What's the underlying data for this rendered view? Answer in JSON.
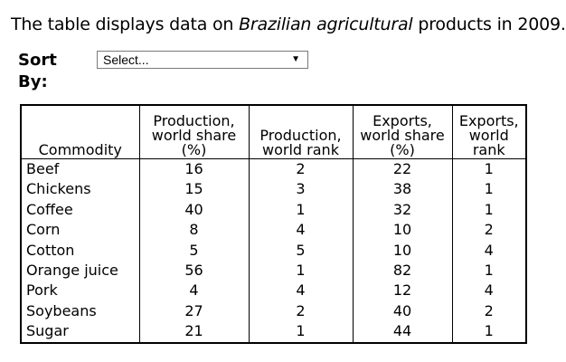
{
  "intro": {
    "before": "The table displays data on ",
    "emphasis": "Brazilian agricultural",
    "after": " products in 2009."
  },
  "sort": {
    "label": "Sort By:",
    "selected": "Select...",
    "arrow_icon": "chevron-down-icon"
  },
  "table": {
    "headers": [
      "Commodity",
      "Production, world share (%)",
      "Production, world rank",
      "Exports, world share (%)",
      "Exports, world rank"
    ],
    "rows": [
      [
        "Beef",
        "16",
        "2",
        "22",
        "1"
      ],
      [
        "Chickens",
        "15",
        "3",
        "38",
        "1"
      ],
      [
        "Coffee",
        "40",
        "1",
        "32",
        "1"
      ],
      [
        "Corn",
        "8",
        "4",
        "10",
        "2"
      ],
      [
        "Cotton",
        "5",
        "5",
        "10",
        "4"
      ],
      [
        "Orange juice",
        "56",
        "1",
        "82",
        "1"
      ],
      [
        "Pork",
        "4",
        "4",
        "12",
        "4"
      ],
      [
        "Soybeans",
        "27",
        "2",
        "40",
        "2"
      ],
      [
        "Sugar",
        "21",
        "1",
        "44",
        "1"
      ]
    ]
  }
}
